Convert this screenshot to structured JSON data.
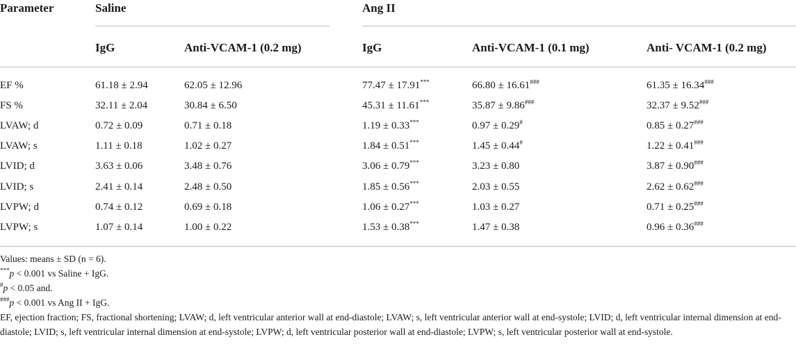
{
  "header": {
    "parameter": "Parameter",
    "saline": "Saline",
    "angii": "Ang II",
    "sub": [
      "IgG",
      "Anti-VCAM-1 (0.2 mg)",
      "IgG",
      "Anti-VCAM-1 (0.1 mg)",
      "Anti- VCAM-1 (0.2 mg)"
    ]
  },
  "rows": [
    {
      "param": "EF %",
      "c1": "61.18 ± 2.94",
      "c2": "62.05 ± 12.96",
      "c3": "77.47 ± 17.91",
      "c3s": "***",
      "c4": "66.80 ± 16.61",
      "c4s": "###",
      "c5": "61.35 ± 16.34",
      "c5s": "###"
    },
    {
      "param": "FS %",
      "c1": "32.11 ± 2.04",
      "c2": "30.84 ± 6.50",
      "c3": "45.31 ± 11.61",
      "c3s": "***",
      "c4": "35.87 ± 9.86",
      "c4s": "###",
      "c5": "32.37 ± 9.52",
      "c5s": "###"
    },
    {
      "param": "LVAW; d",
      "c1": "0.72 ± 0.09",
      "c2": "0.71 ± 0.18",
      "c3": "1.19 ± 0.33",
      "c3s": "***",
      "c4": "0.97 ± 0.29",
      "c4s": "#",
      "c5": "0.85 ± 0.27",
      "c5s": "###"
    },
    {
      "param": "LVAW; s",
      "c1": "1.11 ± 0.18",
      "c2": "1.02 ± 0.27",
      "c3": "1.84 ± 0.51",
      "c3s": "***",
      "c4": "1.45 ± 0.44",
      "c4s": "#",
      "c5": "1.22 ± 0.41",
      "c5s": "###"
    },
    {
      "param": "LVID; d",
      "c1": "3.63 ± 0.06",
      "c2": "3.48 ± 0.76",
      "c3": "3.06 ± 0.79",
      "c3s": "***",
      "c4": "3.23 ± 0.80",
      "c4s": "",
      "c5": "3.87 ± 0.90",
      "c5s": "###"
    },
    {
      "param": "LVID; s",
      "c1": "2.41 ± 0.14",
      "c2": "2.48 ± 0.50",
      "c3": "1.85 ± 0.56",
      "c3s": "***",
      "c4": "2.03 ± 0.55",
      "c4s": "",
      "c5": "2.62 ± 0.62",
      "c5s": "###"
    },
    {
      "param": "LVPW; d",
      "c1": "0.74 ± 0.12",
      "c2": "0.69 ± 0.18",
      "c3": "1.06 ± 0.27",
      "c3s": "***",
      "c4": "1.03 ± 0.27",
      "c4s": "",
      "c5": "0.71 ± 0.25",
      "c5s": "###"
    },
    {
      "param": "LVPW; s",
      "c1": "1.07 ± 0.14",
      "c2": "1.00 ± 0.22",
      "c3": "1.53 ± 0.38",
      "c3s": "***",
      "c4": "1.47 ± 0.38",
      "c4s": "",
      "c5": "0.96 ± 0.36",
      "c5s": "###"
    }
  ],
  "footnotes": {
    "values": "Values: means ± SD (n = 6).",
    "f1_sup": "***",
    "f1_p": "p",
    "f1_text": " < 0.001 vs Saline + IgG.",
    "f2_sup": "#",
    "f2_p": "p",
    "f2_text": " < 0.05 and.",
    "f3_sup": "###",
    "f3_p": "p",
    "f3_text": " < 0.001 vs Ang II + IgG.",
    "abbrev": "EF, ejection fraction; FS, fractional shortening; LVAW; d, left ventricular anterior wall at end-diastole; LVAW; s, left ventricular anterior wall at end-systole; LVID; d, left ventricular internal dimension at end-diastole; LVID; s, left ventricular internal dimension at end-systole; LVPW; d, left ventricular posterior wall at end-diastole; LVPW; s, left ventricular posterior wall at end-systole."
  }
}
